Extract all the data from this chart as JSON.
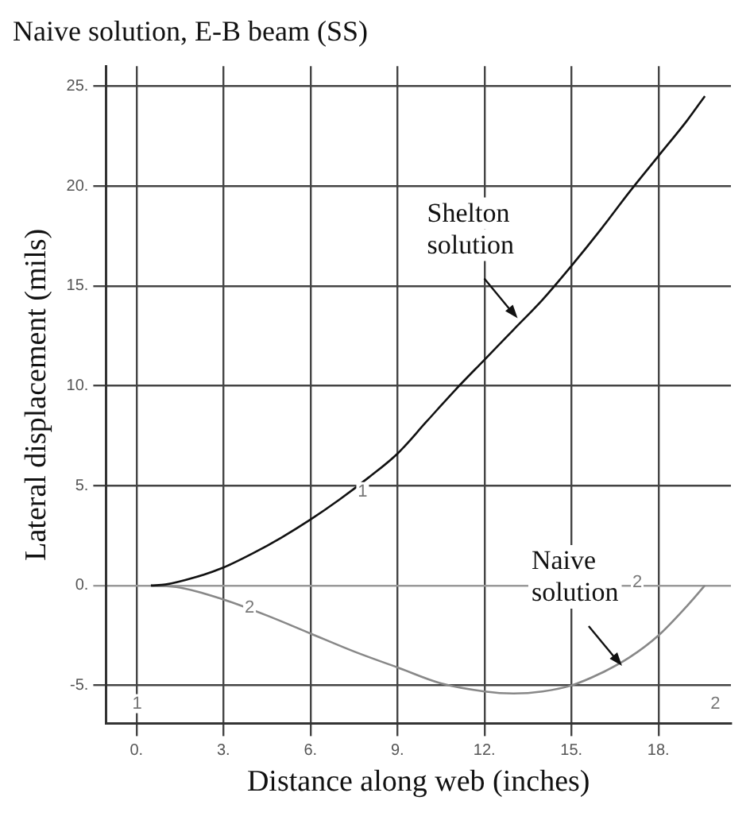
{
  "chart_data": {
    "type": "line",
    "title": "Naive solution, E-B beam (SS)",
    "xlabel": "Distance along web (inches)",
    "ylabel": "Lateral displacement (mils)",
    "xlim": [
      -1.05,
      20.5
    ],
    "ylim": [
      -6.9,
      26
    ],
    "xticks": [
      {
        "value": 0,
        "label": "0."
      },
      {
        "value": 3,
        "label": "3."
      },
      {
        "value": 6,
        "label": "6."
      },
      {
        "value": 9,
        "label": "9."
      },
      {
        "value": 12,
        "label": "12."
      },
      {
        "value": 15,
        "label": "15."
      },
      {
        "value": 18,
        "label": "18."
      }
    ],
    "yticks": [
      {
        "value": -5,
        "label": "-5."
      },
      {
        "value": 0,
        "label": "0."
      },
      {
        "value": 5,
        "label": "5."
      },
      {
        "value": 10,
        "label": "10."
      },
      {
        "value": 15,
        "label": "15."
      },
      {
        "value": 20,
        "label": "20."
      },
      {
        "value": 25,
        "label": "25."
      }
    ],
    "grid": true,
    "legend": false,
    "marker": "none",
    "line_style": "solid",
    "series": [
      {
        "color": "#111111",
        "x": [
          0.5,
          1,
          2,
          3,
          4,
          5,
          6,
          7,
          8,
          9,
          10,
          11,
          12,
          13,
          14,
          15,
          16,
          17,
          18,
          19,
          19.6
        ],
        "values": [
          0,
          0.05,
          0.4,
          0.9,
          1.6,
          2.4,
          3.3,
          4.3,
          5.4,
          6.6,
          8.2,
          9.8,
          11.3,
          12.8,
          14.3,
          16,
          17.8,
          19.7,
          21.5,
          23.3,
          24.5
        ]
      },
      {
        "color": "#888888",
        "x": [
          0.5,
          1.5,
          3,
          4.5,
          6,
          7.5,
          9,
          10.5,
          12,
          13,
          14,
          15,
          16,
          17,
          18,
          19,
          19.6
        ],
        "values": [
          0,
          -0.1,
          -0.7,
          -1.5,
          -2.4,
          -3.3,
          -4.1,
          -4.9,
          -5.3,
          -5.4,
          -5.3,
          -5,
          -4.4,
          -3.6,
          -2.5,
          -1,
          0
        ]
      }
    ],
    "annotations": [
      {
        "text": "Shelton solution",
        "x": 13.2,
        "y": 13.3
      },
      {
        "text": "Naive solution",
        "x": 16.8,
        "y": -4.1
      },
      {
        "text": "1",
        "x": 7.8,
        "y": 4.7
      },
      {
        "text": "2",
        "x": 3.9,
        "y": -1.1
      },
      "2",
      "2",
      "1"
    ]
  }
}
